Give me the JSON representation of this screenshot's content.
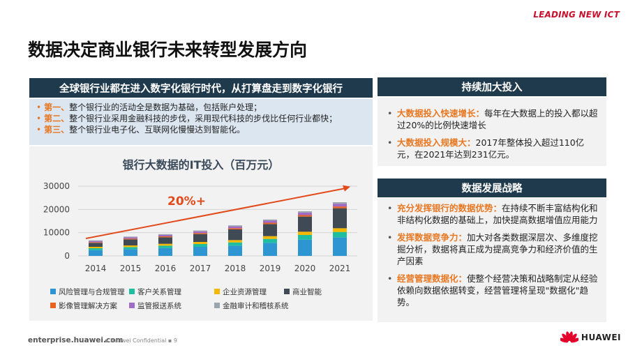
{
  "header": {
    "brand_slogan": "LEADING NEW ICT",
    "title": "数据决定商业银行未来转型发展方向"
  },
  "left": {
    "banner": "全球银行业都在进入数字化银行时代，从打算盘走到数字化银行",
    "bullets": [
      {
        "lead": "第一、",
        "text": "整个银行业的活动全是数据为基础，包括账户处理；"
      },
      {
        "lead": "第二、",
        "text": "整个银行业采用金融科技的步伐，采用现代科技的步伐比任何行业都快；"
      },
      {
        "lead": "第三、",
        "text": "整个银行业电子化、互联网化慢慢达到智能化。"
      }
    ]
  },
  "chart_data": {
    "type": "bar",
    "stacked": true,
    "title": "银行大数据的IT投入（百万元）",
    "annotation": "20%+",
    "categories": [
      "2014",
      "2015",
      "2016",
      "2017",
      "2018",
      "2019",
      "2020",
      "2021"
    ],
    "ylim": [
      0,
      30000
    ],
    "yticks": [
      "0",
      "10000",
      "20000",
      "30000"
    ],
    "series": [
      {
        "name": "风险管理与合规管理",
        "color": "#2e95d3",
        "values": [
          2500,
          2900,
          3400,
          3900,
          4400,
          5600,
          7000,
          8000
        ]
      },
      {
        "name": "客户关系管理",
        "color": "#1dbfa0",
        "values": [
          800,
          900,
          1000,
          1200,
          1400,
          1700,
          2000,
          2300
        ]
      },
      {
        "name": "企业资源管理",
        "color": "#f5b800",
        "values": [
          600,
          700,
          800,
          900,
          1000,
          1200,
          1400,
          1600
        ]
      },
      {
        "name": "商业智能",
        "color": "#404a55",
        "values": [
          1700,
          2600,
          2800,
          3400,
          4600,
          5200,
          6500,
          8600
        ]
      },
      {
        "name": "影像管理解决方案",
        "color": "#e86221",
        "values": [
          300,
          350,
          400,
          450,
          500,
          550,
          650,
          750
        ]
      },
      {
        "name": "监管报送系统",
        "color": "#a06bc7",
        "values": [
          500,
          550,
          600,
          700,
          800,
          900,
          1100,
          1200
        ]
      },
      {
        "name": "金融审计和稽核系统",
        "color": "#9aa5ad",
        "values": [
          300,
          300,
          350,
          400,
          450,
          500,
          550,
          650
        ]
      }
    ]
  },
  "right": {
    "invest_header": "持续加大投入",
    "invest_items": [
      {
        "lead": "大数据投入快速增长：",
        "text": "每年在大数据上的投入都以超过20%的比例快速增长"
      },
      {
        "lead": "大数据投入规模大：",
        "text": "2017年整体投入超过110亿元，在2021年达到231亿元。"
      }
    ],
    "strategy_header": "数据发展战略",
    "strategy_items": [
      {
        "lead": "充分发挥银行的数据优势：",
        "text": "在持续不断丰富结构化和非结构化数据的基础上，加快提高数据增值应用能力"
      },
      {
        "lead": "发挥数据竞争力：",
        "text": "加大对各类数据深层次、多维度挖掘分析，数据将真正成为提高竞争力和经济价值的生产因素"
      },
      {
        "lead": "经营管理数据化：",
        "text": "使整个经营决策和战略制定从经验依赖向数据依据转变，经营管理将呈现\"数据化\"趋势。"
      }
    ]
  },
  "footer": {
    "site": "enterprise.huawei.com",
    "confidential": "▪ Huawei Confidential ▪ 9",
    "logo_text": "HUAWEI",
    "logo_color": "#e4002b"
  }
}
